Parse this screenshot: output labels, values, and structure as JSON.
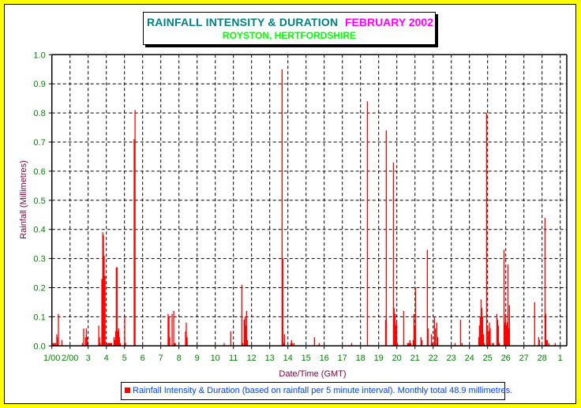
{
  "header": {
    "title": "RAINFALL INTENSITY & DURATION",
    "period": "FEBRUARY 2002",
    "location": "ROYSTON, HERTFORDSHIRE"
  },
  "colors": {
    "bar": "#ff0000",
    "tick_labels": "#008000",
    "axis_title": "#800040",
    "legend_text": "#0040ff",
    "background": "#ffff00"
  },
  "chart_data": {
    "type": "bar",
    "title": "RAINFALL INTENSITY & DURATION FEBRUARY 2002",
    "subtitle": "ROYSTON, HERTFORDSHIRE",
    "xlabel": "Date/Time (GMT)",
    "ylabel": "Rainfall (Millimetres)",
    "ylim": [
      0,
      1.0
    ],
    "xlim": [
      1,
      29
    ],
    "grid": true,
    "yticks": [
      "0.0",
      "0.1",
      "0.2",
      "0.3",
      "0.4",
      "0.5",
      "0.6",
      "0.7",
      "0.8",
      "0.9",
      "1.0"
    ],
    "xticks": [
      "1/00",
      "2/00",
      "3",
      "4",
      "5",
      "6",
      "7",
      "8",
      "9",
      "10",
      "11",
      "12",
      "13",
      "14",
      "15",
      "16",
      "17",
      "18",
      "19",
      "20",
      "21",
      "22",
      "23",
      "24",
      "25",
      "26",
      "27",
      "28",
      "1"
    ],
    "legend": "Rainfall Intensity & Duration (based on rainfall per 5 minute interval). Monthly total 48.9 millimetres.",
    "legend_position": "bottom",
    "series": [
      {
        "name": "Rainfall Intensity & Duration",
        "points": [
          [
            1.07,
            0.01
          ],
          [
            1.13,
            0.01
          ],
          [
            1.2,
            0.01
          ],
          [
            1.27,
            0.04
          ],
          [
            1.3,
            0.03
          ],
          [
            1.36,
            0.11
          ],
          [
            1.55,
            0.02
          ],
          [
            2.68,
            0.01
          ],
          [
            2.75,
            0.06
          ],
          [
            2.85,
            0.03
          ],
          [
            2.9,
            0.06
          ],
          [
            2.94,
            0.03
          ],
          [
            3.58,
            0.07
          ],
          [
            3.62,
            0.03
          ],
          [
            3.66,
            0.01
          ],
          [
            3.75,
            0.23
          ],
          [
            3.8,
            0.39
          ],
          [
            3.84,
            0.38
          ],
          [
            3.88,
            0.31
          ],
          [
            3.93,
            0.24
          ],
          [
            4.06,
            0.01
          ],
          [
            4.11,
            0.01
          ],
          [
            4.16,
            0.01
          ],
          [
            4.2,
            0.01
          ],
          [
            4.25,
            0.01
          ],
          [
            4.29,
            0.01
          ],
          [
            4.42,
            0.03
          ],
          [
            4.46,
            0.02
          ],
          [
            4.51,
            0.05
          ],
          [
            4.55,
            0.27
          ],
          [
            4.59,
            0.27
          ],
          [
            4.64,
            0.05
          ],
          [
            4.68,
            0.06
          ],
          [
            4.72,
            0.03
          ],
          [
            4.77,
            0.01
          ],
          [
            5.01,
            0.1
          ],
          [
            5.06,
            0.01
          ],
          [
            5.53,
            0.71
          ],
          [
            5.58,
            0.81
          ],
          [
            7.4,
            0.11
          ],
          [
            7.45,
            0.1
          ],
          [
            7.49,
            0.03
          ],
          [
            7.62,
            0.11
          ],
          [
            7.71,
            0.12
          ],
          [
            7.75,
            0.01
          ],
          [
            7.8,
            0.01
          ],
          [
            8.36,
            0.05
          ],
          [
            8.4,
            0.08
          ],
          [
            8.45,
            0.03
          ],
          [
            10.49,
            0.01
          ],
          [
            10.85,
            0.05
          ],
          [
            11.46,
            0.21
          ],
          [
            11.51,
            0.01
          ],
          [
            11.59,
            0.09
          ],
          [
            11.64,
            0.1
          ],
          [
            11.68,
            0.07
          ],
          [
            11.72,
            0.12
          ],
          [
            11.77,
            0.02
          ],
          [
            13.68,
            0.95
          ],
          [
            13.72,
            0.3
          ],
          [
            13.77,
            0.01
          ],
          [
            13.81,
            0.04
          ],
          [
            14.16,
            0.01
          ],
          [
            14.2,
            0.02
          ],
          [
            14.24,
            0.01
          ],
          [
            14.33,
            0.01
          ],
          [
            15.46,
            0.03
          ],
          [
            15.72,
            0.01
          ],
          [
            17.51,
            0.01
          ],
          [
            18.38,
            0.84
          ],
          [
            19.38,
            0.09
          ],
          [
            19.42,
            0.74
          ],
          [
            19.81,
            0.63
          ],
          [
            19.85,
            0.13
          ],
          [
            19.9,
            0.11
          ],
          [
            19.94,
            0.07
          ],
          [
            19.98,
            0.08
          ],
          [
            20.03,
            0.01
          ],
          [
            20.38,
            0.12
          ],
          [
            20.59,
            0.01
          ],
          [
            20.64,
            0.01
          ],
          [
            20.68,
            0.01
          ],
          [
            20.72,
            0.02
          ],
          [
            20.77,
            0.01
          ],
          [
            20.9,
            0.02
          ],
          [
            20.94,
            0.11
          ],
          [
            20.98,
            0.07
          ],
          [
            21.03,
            0.2
          ],
          [
            21.33,
            0.03
          ],
          [
            21.38,
            0.02
          ],
          [
            21.68,
            0.33
          ],
          [
            21.72,
            0.06
          ],
          [
            21.9,
            0.04
          ],
          [
            21.94,
            0.01
          ],
          [
            22.07,
            0.1
          ],
          [
            22.12,
            0.06
          ],
          [
            22.2,
            0.08
          ],
          [
            22.25,
            0.03
          ],
          [
            23.2,
            0.01
          ],
          [
            23.51,
            0.09
          ],
          [
            23.59,
            0.01
          ],
          [
            24.51,
            0.03
          ],
          [
            24.55,
            0.07
          ],
          [
            24.59,
            0.1
          ],
          [
            24.64,
            0.16
          ],
          [
            24.68,
            0.13
          ],
          [
            24.72,
            0.1
          ],
          [
            24.77,
            0.04
          ],
          [
            24.81,
            0.01
          ],
          [
            24.94,
            0.8
          ],
          [
            25.0,
            0.07
          ],
          [
            25.06,
            0.05
          ],
          [
            25.1,
            0.08
          ],
          [
            25.14,
            0.06
          ],
          [
            25.25,
            0.01
          ],
          [
            25.33,
            0.01
          ],
          [
            25.51,
            0.11
          ],
          [
            25.55,
            0.09
          ],
          [
            25.59,
            0.07
          ],
          [
            25.64,
            0.01
          ],
          [
            25.9,
            0.33
          ],
          [
            25.94,
            0.08
          ],
          [
            25.98,
            0.11
          ],
          [
            26.03,
            0.07
          ],
          [
            26.07,
            0.08
          ],
          [
            26.12,
            0.28
          ],
          [
            26.16,
            0.06
          ],
          [
            26.2,
            0.14
          ],
          [
            27.59,
            0.15
          ],
          [
            27.81,
            0.03
          ],
          [
            27.85,
            0.02
          ],
          [
            28.16,
            0.44
          ],
          [
            28.2,
            0.11
          ],
          [
            28.25,
            0.02
          ],
          [
            28.29,
            0.02
          ],
          [
            28.38,
            0.01
          ],
          [
            28.72,
            0.01
          ]
        ]
      }
    ]
  }
}
